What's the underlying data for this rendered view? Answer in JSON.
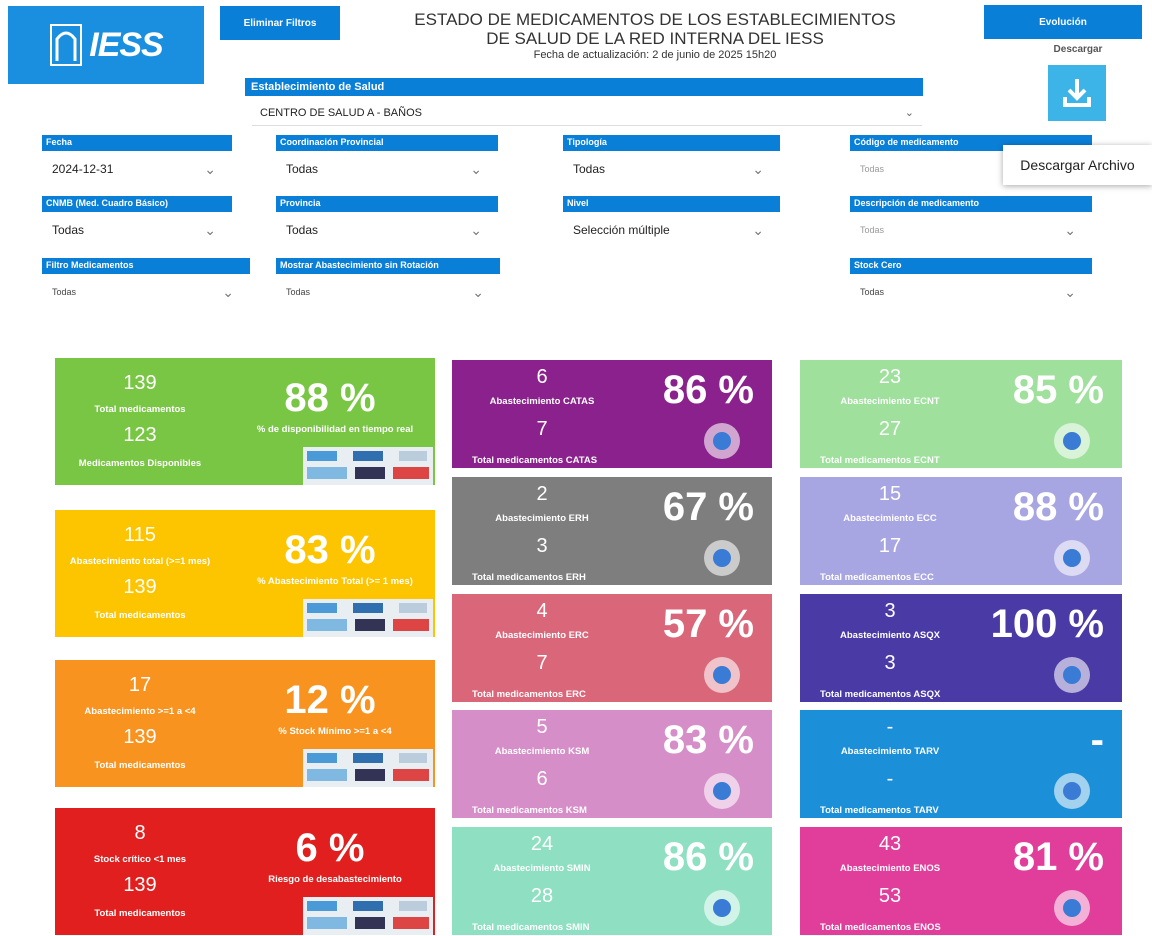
{
  "header": {
    "logo": "IESS",
    "clear_filters": "Eliminar Filtros",
    "title_line1": "ESTADO DE MEDICAMENTOS DE LOS ESTABLECIMIENTOS",
    "title_line2": "DE SALUD DE LA RED INTERNA DEL IESS",
    "updated": "Fecha de actualización: 2 de junio de 2025 15h20",
    "evolution": "Evolución",
    "download": "Descargar",
    "download_tooltip": "Descargar Archivo"
  },
  "establishment": {
    "label": "Establecimiento de Salud",
    "value": "CENTRO DE SALUD A - BAÑOS"
  },
  "filters": [
    {
      "label": "Fecha",
      "value": "2024-12-31"
    },
    {
      "label": "Coordinación Provincial",
      "value": "Todas"
    },
    {
      "label": "Tipología",
      "value": "Todas"
    },
    {
      "label": "Código de medicamento",
      "value": "Todas"
    },
    {
      "label": "CNMB (Med. Cuadro Básico)",
      "value": "Todas"
    },
    {
      "label": "Provincia",
      "value": "Todas"
    },
    {
      "label": "Nivel",
      "value": "Selección múltiple"
    },
    {
      "label": "Descripción de medicamento",
      "value": "Todas"
    },
    {
      "label": "Filtro Medicamentos",
      "value": "Todas"
    },
    {
      "label": "Mostrar Abastecimiento sin Rotación",
      "value": "Todas"
    },
    {
      "label": "Stock Cero",
      "value": "Todas"
    }
  ],
  "cards": [
    {
      "top": "139",
      "top_label": "Total medicamentos",
      "bottom": "123",
      "bottom_label": "Medicamentos Disponibles",
      "percent": "88 %",
      "percent_label": "% de disponibilidad en tiempo real"
    },
    {
      "top": "115",
      "top_label": "Abastecimiento total (>=1 mes)",
      "bottom": "139",
      "bottom_label": "Total medicamentos",
      "percent": "83 %",
      "percent_label": "% Abastecimiento Total (>= 1 mes)"
    },
    {
      "top": "17",
      "top_label": "Abastecimiento >=1 a <4",
      "bottom": "139",
      "bottom_label": "Total medicamentos",
      "percent": "12 %",
      "percent_label": "% Stock Mínimo >=1 a <4"
    },
    {
      "top": "8",
      "top_label": "Stock crítico <1 mes",
      "bottom": "139",
      "bottom_label": "Total medicamentos",
      "percent": "6 %",
      "percent_label": "Riesgo de desabastecimiento"
    },
    {
      "top": "6",
      "top_label": "Abastecimiento CATAS",
      "bottom": "7",
      "bottom_label": "Total medicamentos CATAS",
      "percent": "86 %"
    },
    {
      "top": "2",
      "top_label": "Abastecimiento ERH",
      "bottom": "3",
      "bottom_label": "Total medicamentos ERH",
      "percent": "67 %"
    },
    {
      "top": "4",
      "top_label": "Abastecimiento ERC",
      "bottom": "7",
      "bottom_label": "Total medicamentos ERC",
      "percent": "57 %"
    },
    {
      "top": "5",
      "top_label": "Abastecimiento KSM",
      "bottom": "6",
      "bottom_label": "Total medicamentos KSM",
      "percent": "83 %"
    },
    {
      "top": "24",
      "top_label": "Abastecimiento SMIN",
      "bottom": "28",
      "bottom_label": "Total medicamentos SMIN",
      "percent": "86 %"
    },
    {
      "top": "23",
      "top_label": "Abastecimiento ECNT",
      "bottom": "27",
      "bottom_label": "Total medicamentos ECNT",
      "percent": "85 %"
    },
    {
      "top": "15",
      "top_label": "Abastecimiento ECC",
      "bottom": "17",
      "bottom_label": "Total medicamentos ECC",
      "percent": "88 %"
    },
    {
      "top": "3",
      "top_label": "Abastecimiento ASQX",
      "bottom": "3",
      "bottom_label": "Total medicamentos ASQX",
      "percent": "100 %"
    },
    {
      "top": "-",
      "top_label": "Abastecimiento TARV",
      "bottom": "-",
      "bottom_label": "Total medicamentos TARV",
      "percent": "-"
    },
    {
      "top": "43",
      "top_label": "Abastecimiento ENOS",
      "bottom": "53",
      "bottom_label": "Total medicamentos ENOS",
      "percent": "81 %"
    }
  ]
}
